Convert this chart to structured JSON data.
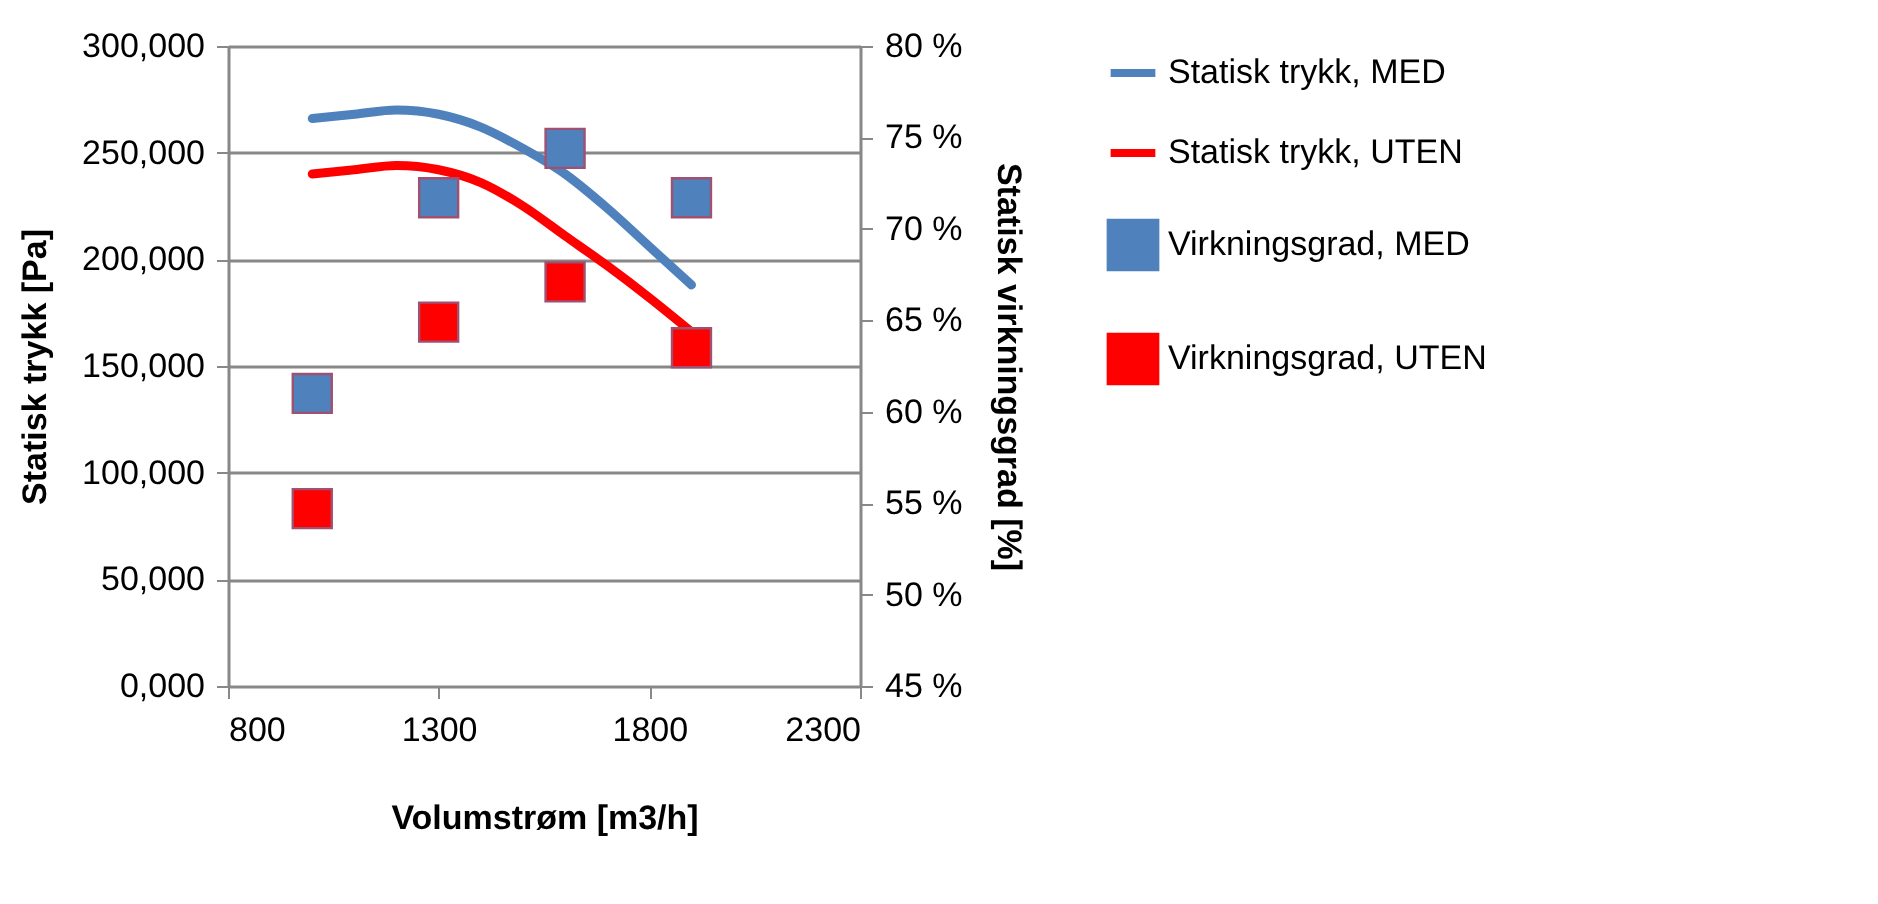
{
  "chart_data": {
    "type": "line",
    "xlabel": "Volumstrøm [m3/h]",
    "ylabel": "Statisk trykk [Pa]",
    "y2label": "Statisk virkningsgrad [%]",
    "x": [
      1000,
      1100,
      1200,
      1300,
      1400,
      1500,
      1600,
      1700,
      1800,
      1900
    ],
    "series": [
      {
        "name": "Statisk trykk, MED",
        "color": "#4f81bd",
        "values": [
          266000,
          268000,
          270000,
          268000,
          262000,
          252000,
          240000,
          224000,
          206000,
          188000
        ]
      },
      {
        "name": "Statisk trykk, UTEN",
        "color": "#ff0000",
        "values": [
          240000,
          242000,
          244000,
          242000,
          236000,
          225000,
          211000,
          197000,
          182000,
          166000
        ]
      },
      {
        "name": "Virkningsgrad, MED",
        "type": "scatter",
        "axis": "y2",
        "marker": "square",
        "color": "#4f81bd",
        "x": [
          1000,
          1300,
          1600,
          1900
        ],
        "values": [
          61.0,
          71.7,
          74.4,
          71.7
        ]
      },
      {
        "name": "Virkningsgrad, UTEN",
        "type": "scatter",
        "axis": "y2",
        "marker": "square",
        "color": "#ff0000",
        "x": [
          1000,
          1300,
          1600,
          1900
        ],
        "values": [
          54.7,
          64.9,
          67.1,
          63.5
        ]
      }
    ],
    "xlim": [
      800,
      2300
    ],
    "xticks": [
      800,
      1300,
      1800,
      2300
    ],
    "ylim": [
      0,
      300000
    ],
    "yticks": [
      {
        "value": 0,
        "label": "0,000"
      },
      {
        "value": 50000,
        "label": "50,000"
      },
      {
        "value": 100000,
        "label": "100,000"
      },
      {
        "value": 150000,
        "label": "150,000"
      },
      {
        "value": 200000,
        "label": "200,000"
      },
      {
        "value": 250000,
        "label": "250,000"
      },
      {
        "value": 300000,
        "label": "300,000"
      }
    ],
    "y2lim": [
      45,
      80
    ],
    "y2ticks": [
      {
        "value": 45,
        "label": "45 %"
      },
      {
        "value": 50,
        "label": "50 %"
      },
      {
        "value": 55,
        "label": "55 %"
      },
      {
        "value": 60,
        "label": "60 %"
      },
      {
        "value": 65,
        "label": "65 %"
      },
      {
        "value": 70,
        "label": "70 %"
      },
      {
        "value": 75,
        "label": "75 %"
      },
      {
        "value": 80,
        "label": "80 %"
      }
    ],
    "grid": "y",
    "legend": "right",
    "line_style": "solid"
  }
}
